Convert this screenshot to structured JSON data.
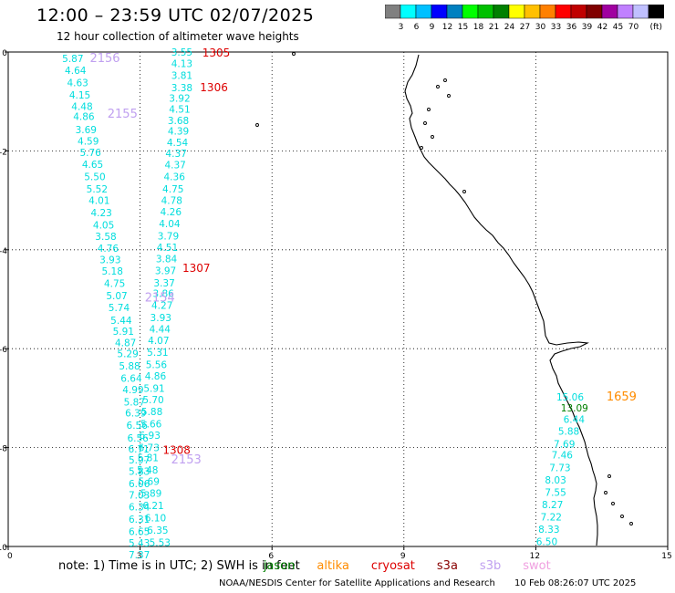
{
  "header": {
    "title": "12:00 – 23:59 UTC 02/07/2025",
    "subtitle": "12 hour collection of altimeter wave heights"
  },
  "scale_bar": {
    "unit": "(ft)",
    "colors": [
      "#808080",
      "#00ffff",
      "#00c0ff",
      "#0000ff",
      "#0080c0",
      "#00ff00",
      "#00c000",
      "#008000",
      "#ffff00",
      "#ffc000",
      "#ff8000",
      "#ff0000",
      "#c00000",
      "#800000",
      "#a000a0",
      "#c080ff",
      "#c0c0ff",
      "#000000"
    ],
    "ticks": [
      "3",
      "6",
      "9",
      "12",
      "15",
      "18",
      "21",
      "24",
      "27",
      "30",
      "33",
      "36",
      "39",
      "42",
      "45",
      "70"
    ]
  },
  "map": {
    "x_ticks": [
      "0",
      "3",
      "6",
      "9",
      "12",
      "15"
    ],
    "y_ticks": [
      "0",
      "-2",
      "-4",
      "-6",
      "-8",
      "-10"
    ],
    "xlim": [
      0,
      15
    ],
    "ylim": [
      -10,
      0
    ],
    "coastline_color": "#000000",
    "colors": {
      "jason": "#00dddd",
      "altika_time": "#ff8c00",
      "cryosat_time": "#dd0000",
      "swot_time": "#c0a0f0",
      "green": "#008000"
    },
    "pass_times": [
      {
        "text": "1305",
        "x": 4.73,
        "y": -0.02,
        "sat": "cryosat"
      },
      {
        "text": "1306",
        "x": 4.68,
        "y": -0.72,
        "sat": "cryosat"
      },
      {
        "text": "1307",
        "x": 4.28,
        "y": -4.37,
        "sat": "cryosat"
      },
      {
        "text": "1308",
        "x": 3.83,
        "y": -8.05,
        "sat": "cryosat"
      },
      {
        "text": "2156",
        "x": 2.2,
        "y": -0.13,
        "sat": "swot"
      },
      {
        "text": "2155",
        "x": 2.6,
        "y": -1.25,
        "sat": "swot"
      },
      {
        "text": "2154",
        "x": 3.45,
        "y": -4.97,
        "sat": "swot"
      },
      {
        "text": "2153",
        "x": 4.05,
        "y": -8.25,
        "sat": "swot"
      },
      {
        "text": "1659",
        "x": 13.95,
        "y": -6.97,
        "sat": "altika"
      }
    ],
    "track_a": [
      {
        "text": "5.87",
        "x": 1.47,
        "y": -0.13
      },
      {
        "text": "4.64",
        "x": 1.53,
        "y": -0.37
      },
      {
        "text": "4.63",
        "x": 1.58,
        "y": -0.62
      },
      {
        "text": "4.15",
        "x": 1.63,
        "y": -0.87
      },
      {
        "text": "4.48",
        "x": 1.68,
        "y": -1.1
      },
      {
        "text": "4.86",
        "x": 1.72,
        "y": -1.3
      },
      {
        "text": "3.69",
        "x": 1.77,
        "y": -1.57
      },
      {
        "text": "4.59",
        "x": 1.82,
        "y": -1.8
      },
      {
        "text": "5.76",
        "x": 1.87,
        "y": -2.03
      },
      {
        "text": "4.65",
        "x": 1.92,
        "y": -2.27
      },
      {
        "text": "5.50",
        "x": 1.97,
        "y": -2.52
      },
      {
        "text": "5.52",
        "x": 2.02,
        "y": -2.77
      },
      {
        "text": "4.01",
        "x": 2.07,
        "y": -3.0
      },
      {
        "text": "4.23",
        "x": 2.12,
        "y": -3.25
      },
      {
        "text": "4.05",
        "x": 2.17,
        "y": -3.5
      },
      {
        "text": "3.58",
        "x": 2.22,
        "y": -3.73
      },
      {
        "text": "4.76",
        "x": 2.27,
        "y": -3.97
      },
      {
        "text": "3.93",
        "x": 2.32,
        "y": -4.2
      },
      {
        "text": "5.18",
        "x": 2.37,
        "y": -4.43
      },
      {
        "text": "4.75",
        "x": 2.42,
        "y": -4.68
      },
      {
        "text": "5.07",
        "x": 2.47,
        "y": -4.93
      },
      {
        "text": "5.74",
        "x": 2.52,
        "y": -5.17
      },
      {
        "text": "5.44",
        "x": 2.57,
        "y": -5.42
      },
      {
        "text": "5.91",
        "x": 2.62,
        "y": -5.65
      },
      {
        "text": "4.87",
        "x": 2.67,
        "y": -5.88
      },
      {
        "text": "5.29",
        "x": 2.72,
        "y": -6.1
      },
      {
        "text": "5.88",
        "x": 2.76,
        "y": -6.35
      },
      {
        "text": "6.64",
        "x": 2.8,
        "y": -6.6
      },
      {
        "text": "4.99",
        "x": 2.84,
        "y": -6.83
      },
      {
        "text": "5.87",
        "x": 2.87,
        "y": -7.08
      },
      {
        "text": "6.39",
        "x": 2.9,
        "y": -7.3
      },
      {
        "text": "6.56",
        "x": 2.93,
        "y": -7.55
      },
      {
        "text": "6.56",
        "x": 2.95,
        "y": -7.8
      },
      {
        "text": "6.71",
        "x": 2.97,
        "y": -8.03
      },
      {
        "text": "5.97",
        "x": 2.98,
        "y": -8.25
      },
      {
        "text": "5.83",
        "x": 2.98,
        "y": -8.48
      },
      {
        "text": "6.06",
        "x": 2.98,
        "y": -8.73
      },
      {
        "text": "7.03",
        "x": 2.98,
        "y": -8.96
      },
      {
        "text": "6.34",
        "x": 2.98,
        "y": -9.2
      },
      {
        "text": "6.31",
        "x": 2.98,
        "y": -9.45
      },
      {
        "text": "6.65",
        "x": 2.98,
        "y": -9.7
      },
      {
        "text": "5.43",
        "x": 2.98,
        "y": -9.93
      },
      {
        "text": "7.37",
        "x": 2.98,
        "y": -10.17
      }
    ],
    "track_b": [
      {
        "text": "3.55",
        "x": 3.95,
        "y": 0.0
      },
      {
        "text": "4.13",
        "x": 3.95,
        "y": -0.23
      },
      {
        "text": "3.81",
        "x": 3.95,
        "y": -0.47
      },
      {
        "text": "3.38",
        "x": 3.95,
        "y": -0.72
      },
      {
        "text": "3.92",
        "x": 3.9,
        "y": -0.93
      },
      {
        "text": "4.51",
        "x": 3.9,
        "y": -1.15
      },
      {
        "text": "3.68",
        "x": 3.87,
        "y": -1.38
      },
      {
        "text": "4.39",
        "x": 3.87,
        "y": -1.6
      },
      {
        "text": "4.54",
        "x": 3.85,
        "y": -1.83
      },
      {
        "text": "4.37",
        "x": 3.82,
        "y": -2.05
      },
      {
        "text": "4.37",
        "x": 3.8,
        "y": -2.28
      },
      {
        "text": "4.36",
        "x": 3.78,
        "y": -2.52
      },
      {
        "text": "4.75",
        "x": 3.75,
        "y": -2.77
      },
      {
        "text": "4.78",
        "x": 3.72,
        "y": -3.0
      },
      {
        "text": "4.26",
        "x": 3.7,
        "y": -3.23
      },
      {
        "text": "4.04",
        "x": 3.67,
        "y": -3.47
      },
      {
        "text": "3.79",
        "x": 3.64,
        "y": -3.72
      },
      {
        "text": "4.51",
        "x": 3.62,
        "y": -3.95
      },
      {
        "text": "3.84",
        "x": 3.6,
        "y": -4.18
      },
      {
        "text": "3.97",
        "x": 3.58,
        "y": -4.42
      },
      {
        "text": "3.37",
        "x": 3.55,
        "y": -4.67
      },
      {
        "text": "3.86",
        "x": 3.53,
        "y": -4.88
      },
      {
        "text": "4.27",
        "x": 3.5,
        "y": -5.12
      },
      {
        "text": "3.93",
        "x": 3.47,
        "y": -5.37
      },
      {
        "text": "4.44",
        "x": 3.45,
        "y": -5.6
      },
      {
        "text": "4.07",
        "x": 3.42,
        "y": -5.83
      },
      {
        "text": "5.31",
        "x": 3.4,
        "y": -6.07
      },
      {
        "text": "5.56",
        "x": 3.37,
        "y": -6.32
      },
      {
        "text": "4.86",
        "x": 3.35,
        "y": -6.55
      },
      {
        "text": "5.91",
        "x": 3.32,
        "y": -6.8
      },
      {
        "text": "5.70",
        "x": 3.3,
        "y": -7.03
      },
      {
        "text": "5.88",
        "x": 3.27,
        "y": -7.27
      },
      {
        "text": "5.66",
        "x": 3.25,
        "y": -7.52
      },
      {
        "text": "6.93",
        "x": 3.22,
        "y": -7.75
      },
      {
        "text": "6.73",
        "x": 3.2,
        "y": -8.0
      },
      {
        "text": "5.81",
        "x": 3.18,
        "y": -8.2
      },
      {
        "text": "5.48",
        "x": 3.17,
        "y": -8.45
      },
      {
        "text": "5.69",
        "x": 3.2,
        "y": -8.68
      },
      {
        "text": "5.89",
        "x": 3.25,
        "y": -8.92
      },
      {
        "text": "6.21",
        "x": 3.3,
        "y": -9.17
      },
      {
        "text": "6.10",
        "x": 3.35,
        "y": -9.42
      },
      {
        "text": "6.35",
        "x": 3.4,
        "y": -9.67
      },
      {
        "text": "5.53",
        "x": 3.45,
        "y": -9.92
      }
    ],
    "track_c": [
      {
        "text": "15.06",
        "x": 12.78,
        "y": -6.97,
        "c": "jason"
      },
      {
        "text": "13.09",
        "x": 12.88,
        "y": -7.2,
        "c": "green"
      },
      {
        "text": "6.44",
        "x": 12.87,
        "y": -7.43,
        "c": "jason"
      },
      {
        "text": "5.88",
        "x": 12.75,
        "y": -7.67,
        "c": "jason"
      },
      {
        "text": "7.69",
        "x": 12.65,
        "y": -7.92,
        "c": "jason"
      },
      {
        "text": "7.46",
        "x": 12.6,
        "y": -8.15,
        "c": "jason"
      },
      {
        "text": "7.73",
        "x": 12.55,
        "y": -8.4,
        "c": "jason"
      },
      {
        "text": "8.03",
        "x": 12.45,
        "y": -8.65,
        "c": "jason"
      },
      {
        "text": "7.55",
        "x": 12.45,
        "y": -8.9,
        "c": "jason"
      },
      {
        "text": "8.27",
        "x": 12.38,
        "y": -9.15,
        "c": "jason"
      },
      {
        "text": "7.22",
        "x": 12.35,
        "y": -9.4,
        "c": "jason"
      },
      {
        "text": "8.33",
        "x": 12.3,
        "y": -9.65,
        "c": "jason"
      },
      {
        "text": "6.50",
        "x": 12.25,
        "y": -9.9,
        "c": "jason"
      }
    ]
  },
  "footer": {
    "note_prefix": "note:  1) Time is in UTC; 2) SWH is in feet",
    "sats": [
      {
        "name": "jason",
        "color": "#008000"
      },
      {
        "name": "altika",
        "color": "#ff8c00"
      },
      {
        "name": "cryosat",
        "color": "#dd0000"
      },
      {
        "name": "s3a",
        "color": "#880000"
      },
      {
        "name": "s3b",
        "color": "#c0a0f0"
      },
      {
        "name": "swot",
        "color": "#f0a0e0"
      }
    ],
    "credit": "NOAA/NESDIS Center for Satellite Applications and Research",
    "generated": "10 Feb 08:26:07 UTC 2025"
  }
}
